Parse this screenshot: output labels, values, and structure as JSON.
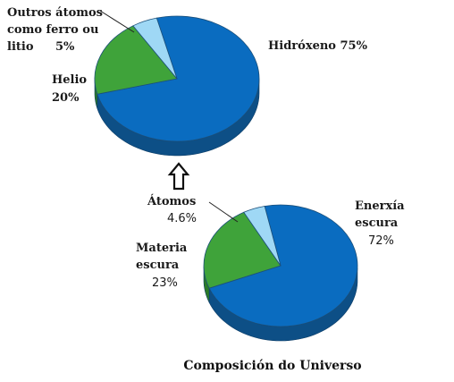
{
  "colors": {
    "blue": "#0a6cc0",
    "blue_side": "#0d4f86",
    "green": "#3fa33a",
    "green_side": "#2b7a27",
    "light_blue": "#9fd8f5",
    "light_blue_side": "#6fb4d6"
  },
  "icons": {
    "arrow": "up-arrow-icon"
  },
  "chart_data": [
    {
      "type": "pie",
      "title": "",
      "slices": [
        {
          "label": "Hidróxeno",
          "value": 75,
          "display": "75%",
          "color": "#0a6cc0"
        },
        {
          "label": "Helio",
          "value": 20,
          "display": "20%",
          "color": "#3fa33a"
        },
        {
          "label": "Outros átomos como ferro ou litio",
          "value": 5,
          "display": "5%",
          "color": "#9fd8f5"
        }
      ],
      "labels": {
        "hydrogen": "Hidróxeno 75%",
        "helium_name": "Helio",
        "helium_pct": "20%",
        "others_line1": "Outros átomos",
        "others_line2": "como ferro ou",
        "others_line3": "litio",
        "others_pct": "5%"
      }
    },
    {
      "type": "pie",
      "title": "Composición do Universo",
      "slices": [
        {
          "label": "Enerxía escura",
          "value": 72,
          "display": "72%",
          "color": "#0a6cc0"
        },
        {
          "label": "Materia escura",
          "value": 23,
          "display": "23%",
          "color": "#3fa33a"
        },
        {
          "label": "Átomos",
          "value": 4.6,
          "display": "4.6%",
          "color": "#9fd8f5"
        }
      ],
      "labels": {
        "energy_line1": "Enerxía",
        "energy_line2": "escura",
        "energy_pct": "72%",
        "matter_line1": "Materia",
        "matter_line2": "escura",
        "matter_pct": "23%",
        "atoms_name": "Átomos",
        "atoms_pct": "4.6%"
      }
    }
  ]
}
